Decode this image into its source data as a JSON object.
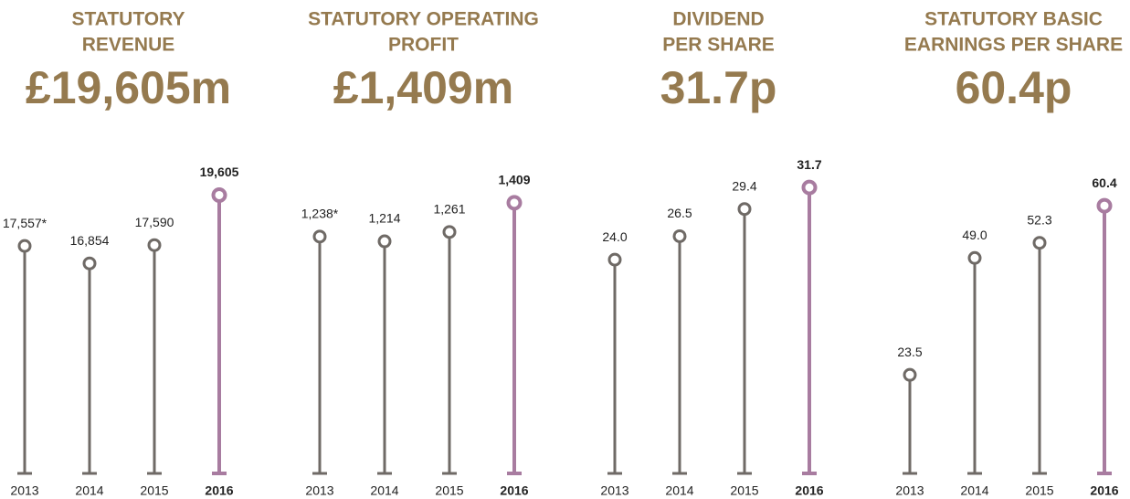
{
  "chart_data": [
    {
      "type": "lollipop",
      "title": [
        "STATUTORY",
        "REVENUE"
      ],
      "headline": "£19,605m",
      "categories": [
        "2013",
        "2014",
        "2015",
        "2016"
      ],
      "values": [
        17557,
        16854,
        17590,
        19605
      ],
      "value_labels": [
        "17,557*",
        "16,854",
        "17,590",
        "19,605"
      ],
      "ylim": [
        8400,
        20100
      ],
      "color": "#6f6a66",
      "highlight_color": "#a87ca0",
      "highlight_index": 3,
      "title_color": "#957a4f"
    },
    {
      "type": "lollipop",
      "title": [
        "STATUTORY OPERATING",
        "PROFIT"
      ],
      "headline": "£1,409m",
      "categories": [
        "2013",
        "2014",
        "2015",
        "2016"
      ],
      "values": [
        1238,
        1214,
        1261,
        1409
      ],
      "value_labels": [
        "1,238*",
        "1,214",
        "1,261",
        "1,409"
      ],
      "ylim": [
        40,
        1510
      ],
      "color": "#6f6a66",
      "highlight_color": "#a87ca0",
      "highlight_index": 3,
      "title_color": "#957a4f"
    },
    {
      "type": "lollipop",
      "title": [
        "DIVIDEND",
        "PER SHARE"
      ],
      "headline": "31.7p",
      "categories": [
        "2013",
        "2014",
        "2015",
        "2016"
      ],
      "values": [
        24.0,
        26.5,
        29.4,
        31.7
      ],
      "value_labels": [
        "24.0",
        "26.5",
        "29.4",
        "31.7"
      ],
      "ylim": [
        1.2,
        32.2
      ],
      "color": "#6f6a66",
      "highlight_color": "#a87ca0",
      "highlight_index": 3,
      "title_color": "#957a4f"
    },
    {
      "type": "lollipop",
      "title": [
        "STATUTORY BASIC",
        "EARNINGS PER SHARE"
      ],
      "headline": "60.4p",
      "categories": [
        "2013",
        "2014",
        "2015",
        "2016"
      ],
      "values": [
        23.5,
        49.0,
        52.3,
        60.4
      ],
      "value_labels": [
        "23.5",
        "49.0",
        "52.3",
        "60.4"
      ],
      "ylim": [
        2,
        65.4
      ],
      "color": "#6f6a66",
      "highlight_color": "#a87ca0",
      "highlight_index": 3,
      "title_color": "#957a4f"
    }
  ]
}
